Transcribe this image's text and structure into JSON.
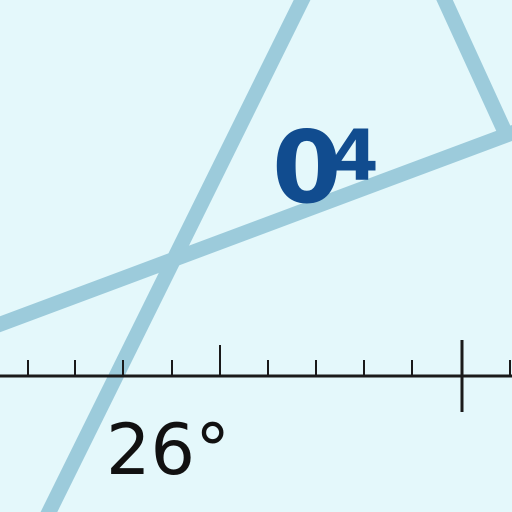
{
  "map_labels": {
    "area_number_main": "0",
    "area_number_sub": "4",
    "bearing": "26°"
  },
  "colors": {
    "background": "#e4f8fb",
    "line_feature": "#9ccbdb",
    "label_blue": "#114c8f",
    "scale_black": "#1a1a1a"
  }
}
